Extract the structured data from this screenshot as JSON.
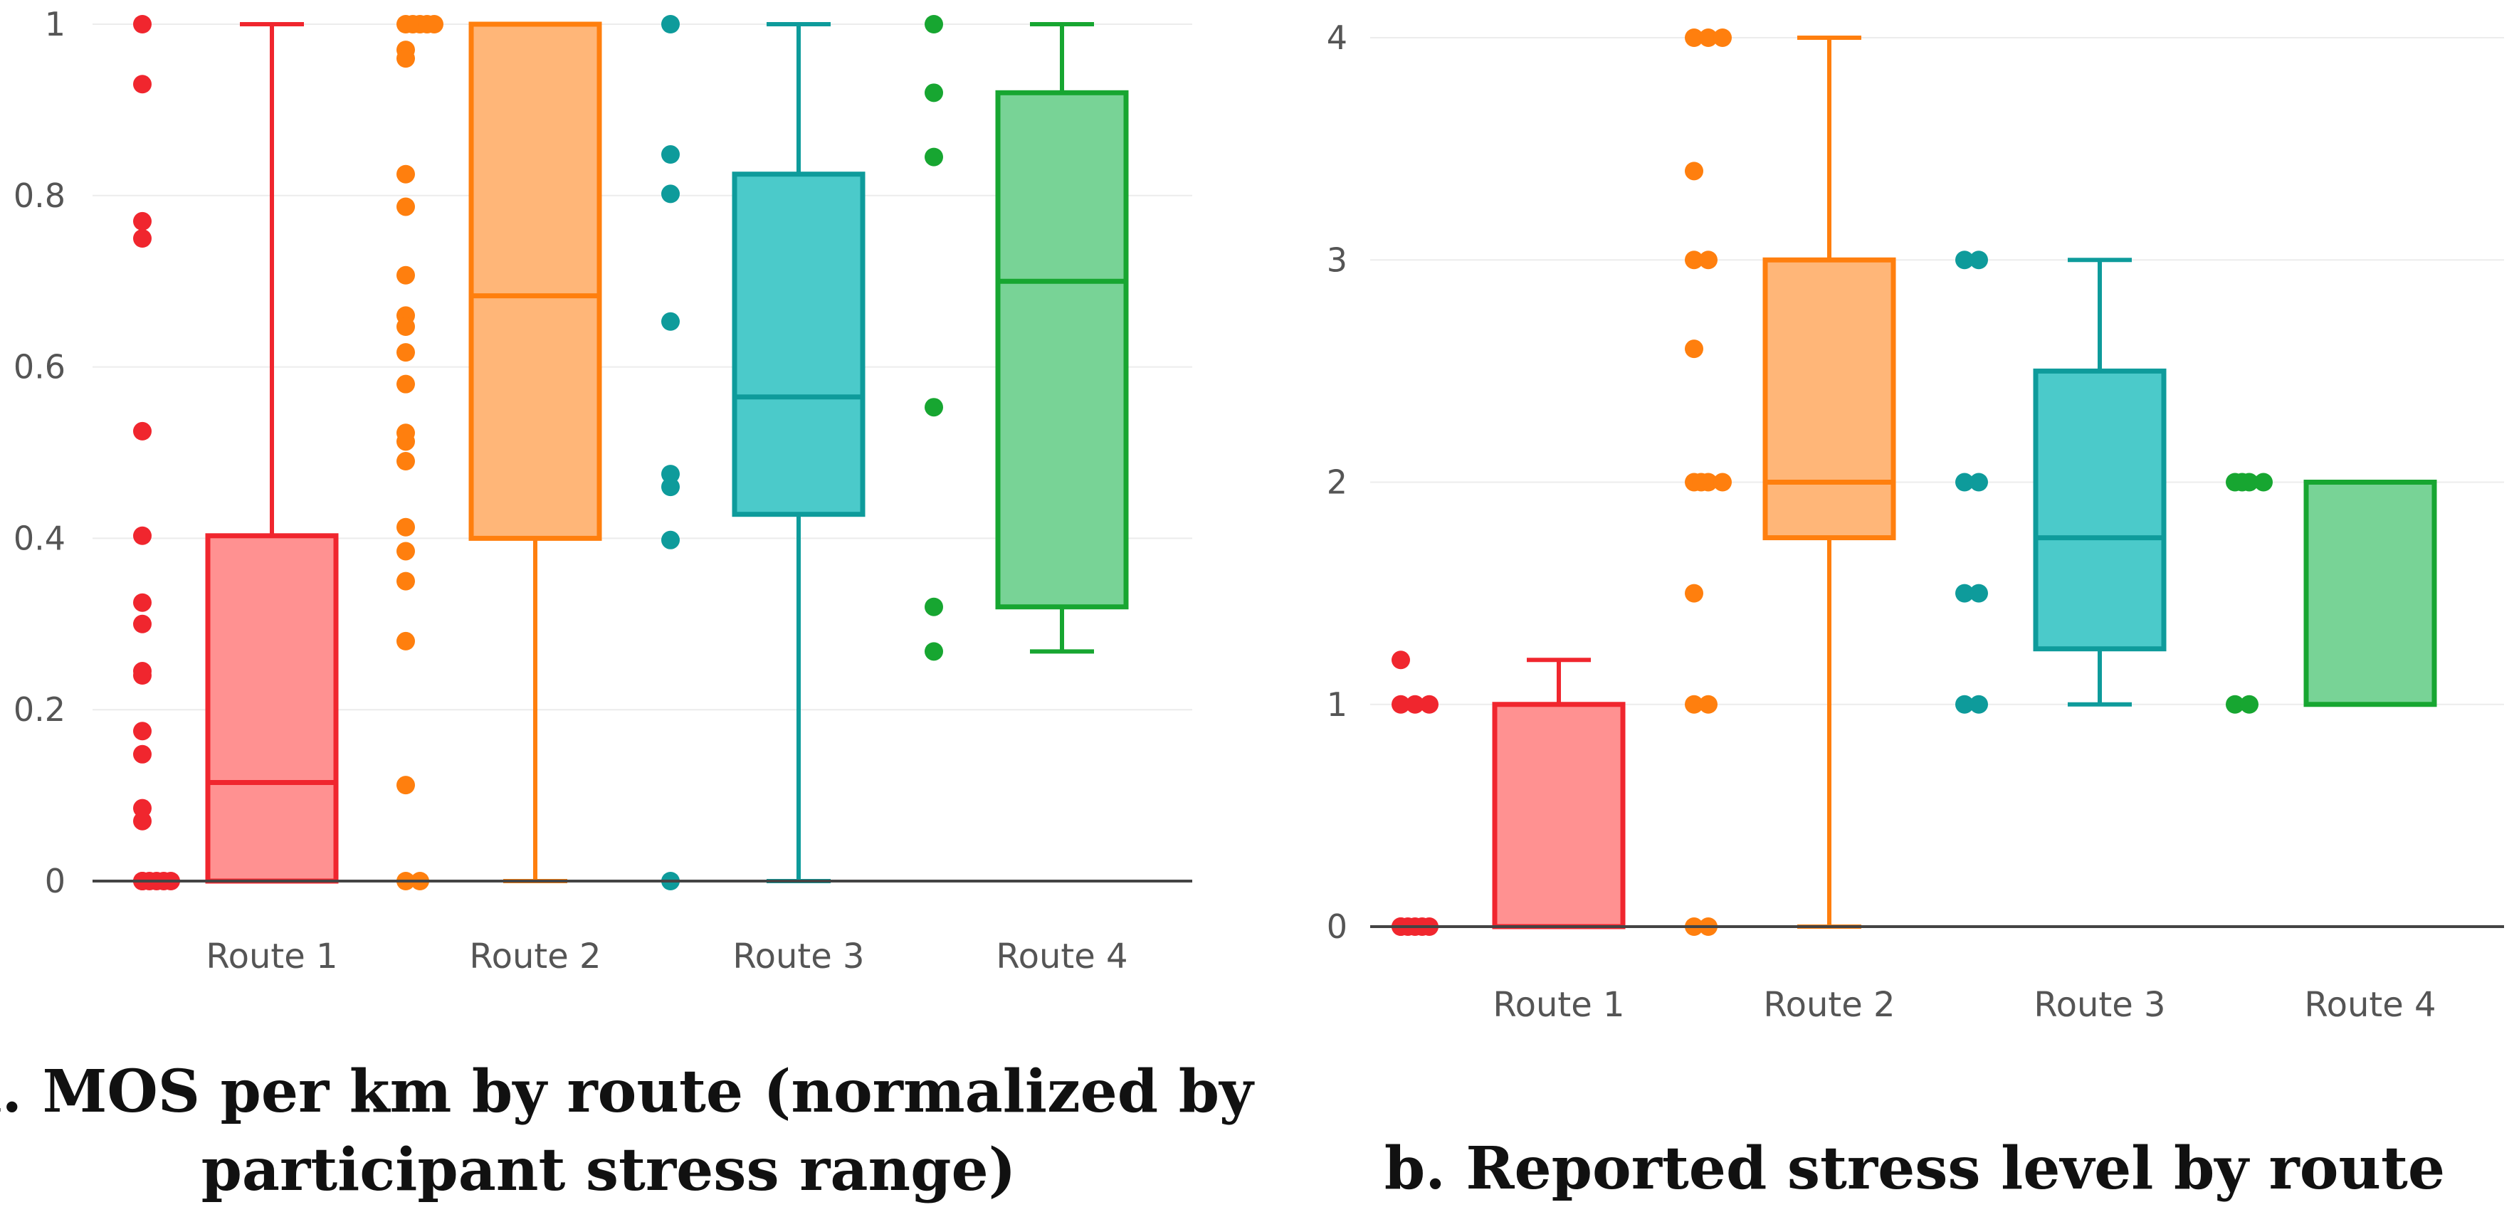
{
  "chart_data": [
    {
      "type": "box",
      "title": "a. MOS per km by route (normalized by participant stress range)",
      "title_lines": [
        "a. MOS per km by route (normalized by",
        "participant stress range)"
      ],
      "xlabel": "",
      "ylabel": "",
      "ylim": [
        0,
        1
      ],
      "yticks": [
        0,
        0.2,
        0.4,
        0.6,
        0.8,
        1
      ],
      "ytick_labels": [
        "0",
        "0.2",
        "0.4",
        "0.6",
        "0.8",
        "1"
      ],
      "grid": true,
      "categories": [
        "Route 1",
        "Route 2",
        "Route 3",
        "Route 4"
      ],
      "series": [
        {
          "name": "Route 1",
          "color": "#f0262e",
          "fill": "#ff9191",
          "box": {
            "min": 0,
            "q1": 0,
            "median": 0.115,
            "q3": 0.403,
            "max": 1
          },
          "points": [
            1,
            0.93,
            0.77,
            0.75,
            0.525,
            0.403,
            0.325,
            0.3,
            0.245,
            0.24,
            0.175,
            0.148,
            0.085,
            0.07,
            0,
            0,
            0,
            0,
            0,
            0
          ]
        },
        {
          "name": "Route 2",
          "color": "#ff7f0e",
          "fill": "#ffb678",
          "box": {
            "min": 0,
            "q1": 0.4,
            "median": 0.683,
            "q3": 1,
            "max": 1
          },
          "points": [
            1,
            1,
            1,
            1,
            1,
            0.97,
            0.96,
            0.825,
            0.787,
            0.707,
            0.66,
            0.647,
            0.617,
            0.58,
            0.523,
            0.513,
            0.49,
            0.413,
            0.385,
            0.35,
            0.28,
            0.112,
            0,
            0
          ]
        },
        {
          "name": "Route 3",
          "color": "#0e9b9b",
          "fill": "#4bcaca",
          "box": {
            "min": 0,
            "q1": 0.428,
            "median": 0.565,
            "q3": 0.825,
            "max": 1
          },
          "points": [
            1,
            0.848,
            0.802,
            0.653,
            0.475,
            0.46,
            0.398,
            0
          ]
        },
        {
          "name": "Route 4",
          "color": "#17a631",
          "fill": "#78d396",
          "box": {
            "min": 0.268,
            "q1": 0.32,
            "median": 0.7,
            "q3": 0.92,
            "max": 1
          },
          "points": [
            1,
            0.92,
            0.845,
            0.553,
            0.32,
            0.268
          ]
        }
      ]
    },
    {
      "type": "box",
      "title": "b. Reported stress level by route",
      "title_lines": [
        "b. Reported stress level by route"
      ],
      "xlabel": "",
      "ylabel": "",
      "ylim": [
        0,
        4
      ],
      "yticks": [
        0,
        1,
        2,
        3,
        4
      ],
      "ytick_labels": [
        "0",
        "1",
        "2",
        "3",
        "4"
      ],
      "grid": true,
      "categories": [
        "Route 1",
        "Route 2",
        "Route 3",
        "Route 4"
      ],
      "series": [
        {
          "name": "Route 1",
          "color": "#f0262e",
          "fill": "#ff9191",
          "box": {
            "min": 0,
            "q1": 0,
            "median": 0,
            "q3": 1,
            "max": 1.2
          },
          "points": [
            1.2,
            1,
            1,
            1,
            0,
            0,
            0,
            0,
            0,
            0
          ]
        },
        {
          "name": "Route 2",
          "color": "#ff7f0e",
          "fill": "#ffb678",
          "box": {
            "min": 0,
            "q1": 1.75,
            "median": 2,
            "q3": 3,
            "max": 4
          },
          "points": [
            4,
            4,
            4,
            3.4,
            3,
            3,
            2.6,
            2,
            2,
            2,
            2,
            1.5,
            1,
            1,
            0,
            0
          ]
        },
        {
          "name": "Route 3",
          "color": "#0e9b9b",
          "fill": "#4bcaca",
          "box": {
            "min": 1,
            "q1": 1.25,
            "median": 1.75,
            "q3": 2.5,
            "max": 3
          },
          "points": [
            3,
            3,
            2,
            2,
            1.5,
            1.5,
            1,
            1
          ]
        },
        {
          "name": "Route 4",
          "color": "#17a631",
          "fill": "#78d396",
          "box": {
            "min": 1,
            "q1": 1,
            "median": 2,
            "q3": 2,
            "max": 2
          },
          "points": [
            2,
            2,
            2,
            2,
            1,
            1
          ]
        }
      ]
    }
  ]
}
